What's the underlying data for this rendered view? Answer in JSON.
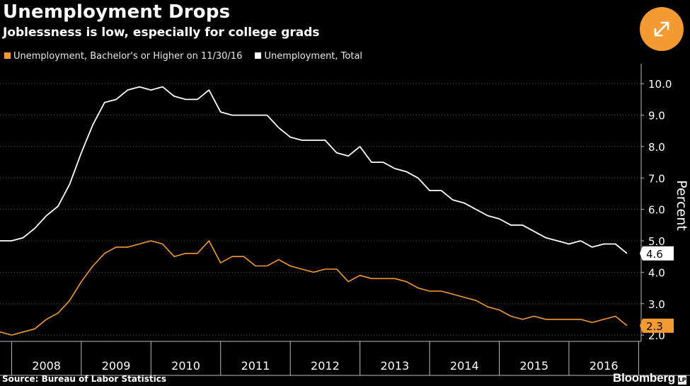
{
  "header": {
    "title": "Unemployment Drops",
    "subtitle": "Joblessness is low, especially for college grads"
  },
  "legend": {
    "items": [
      {
        "label": "Unemployment, Bachelor's or Higher on 11/30/16",
        "color": "#f39a33"
      },
      {
        "label": "Unemployment, Total",
        "color": "#ffffff"
      }
    ]
  },
  "toolbar": {
    "expand_icon": "expand-arrows-icon"
  },
  "footer": {
    "source": "Source: Bureau of Labor Statistics",
    "brand": "Bloomberg",
    "brand_mark": "LP"
  },
  "chart_data": {
    "type": "line",
    "ylabel": "Percent",
    "xlabel": "",
    "ylim": [
      1.8,
      10.5
    ],
    "yticks": [
      2.0,
      3.0,
      4.0,
      5.0,
      6.0,
      7.0,
      8.0,
      9.0,
      10.0
    ],
    "ytick_labels": [
      "2.0",
      "3.0",
      "4.0",
      "5.0",
      "6.0",
      "7.0",
      "8.0",
      "9.0",
      "10.0"
    ],
    "x_tick_labels": [
      "2008",
      "2009",
      "2010",
      "2011",
      "2012",
      "2013",
      "2014",
      "2015",
      "2016"
    ],
    "x_range": [
      "2007-11",
      "2016-11"
    ],
    "grid": true,
    "legend_position": "top-left",
    "series": [
      {
        "name": "Unemployment, Bachelor's or Higher on 11/30/16",
        "color": "#f39a33",
        "last_value_label": "2.3",
        "x": [
          "2007-11",
          "2008-01",
          "2008-03",
          "2008-05",
          "2008-07",
          "2008-09",
          "2008-11",
          "2009-01",
          "2009-03",
          "2009-05",
          "2009-07",
          "2009-09",
          "2009-11",
          "2010-01",
          "2010-03",
          "2010-05",
          "2010-07",
          "2010-09",
          "2010-11",
          "2011-01",
          "2011-03",
          "2011-05",
          "2011-07",
          "2011-09",
          "2011-11",
          "2012-01",
          "2012-03",
          "2012-05",
          "2012-07",
          "2012-09",
          "2012-11",
          "2013-01",
          "2013-03",
          "2013-05",
          "2013-07",
          "2013-09",
          "2013-11",
          "2014-01",
          "2014-03",
          "2014-05",
          "2014-07",
          "2014-09",
          "2014-11",
          "2015-01",
          "2015-03",
          "2015-05",
          "2015-07",
          "2015-09",
          "2015-11",
          "2016-01",
          "2016-03",
          "2016-05",
          "2016-07",
          "2016-09",
          "2016-11"
        ],
        "values": [
          2.1,
          2.0,
          2.1,
          2.2,
          2.5,
          2.7,
          3.1,
          3.7,
          4.2,
          4.6,
          4.8,
          4.8,
          4.9,
          5.0,
          4.9,
          4.5,
          4.6,
          4.6,
          5.0,
          4.3,
          4.5,
          4.5,
          4.2,
          4.2,
          4.4,
          4.2,
          4.1,
          4.0,
          4.1,
          4.1,
          3.7,
          3.9,
          3.8,
          3.8,
          3.8,
          3.7,
          3.5,
          3.4,
          3.4,
          3.3,
          3.2,
          3.1,
          2.9,
          2.8,
          2.6,
          2.5,
          2.6,
          2.5,
          2.5,
          2.5,
          2.5,
          2.4,
          2.5,
          2.6,
          2.3
        ]
      },
      {
        "name": "Unemployment, Total",
        "color": "#ffffff",
        "last_value_label": "4.6",
        "x": [
          "2007-11",
          "2008-01",
          "2008-03",
          "2008-05",
          "2008-07",
          "2008-09",
          "2008-11",
          "2009-01",
          "2009-03",
          "2009-05",
          "2009-07",
          "2009-09",
          "2009-11",
          "2010-01",
          "2010-03",
          "2010-05",
          "2010-07",
          "2010-09",
          "2010-11",
          "2011-01",
          "2011-03",
          "2011-05",
          "2011-07",
          "2011-09",
          "2011-11",
          "2012-01",
          "2012-03",
          "2012-05",
          "2012-07",
          "2012-09",
          "2012-11",
          "2013-01",
          "2013-03",
          "2013-05",
          "2013-07",
          "2013-09",
          "2013-11",
          "2014-01",
          "2014-03",
          "2014-05",
          "2014-07",
          "2014-09",
          "2014-11",
          "2015-01",
          "2015-03",
          "2015-05",
          "2015-07",
          "2015-09",
          "2015-11",
          "2016-01",
          "2016-03",
          "2016-05",
          "2016-07",
          "2016-09",
          "2016-11"
        ],
        "values": [
          5.0,
          5.0,
          5.1,
          5.4,
          5.8,
          6.1,
          6.8,
          7.8,
          8.7,
          9.4,
          9.5,
          9.8,
          9.9,
          9.8,
          9.9,
          9.6,
          9.5,
          9.5,
          9.8,
          9.1,
          9.0,
          9.0,
          9.0,
          9.0,
          8.6,
          8.3,
          8.2,
          8.2,
          8.2,
          7.8,
          7.7,
          8.0,
          7.5,
          7.5,
          7.3,
          7.2,
          7.0,
          6.6,
          6.6,
          6.3,
          6.2,
          6.0,
          5.8,
          5.7,
          5.5,
          5.5,
          5.3,
          5.1,
          5.0,
          4.9,
          5.0,
          4.8,
          4.9,
          4.9,
          4.6
        ]
      }
    ]
  }
}
